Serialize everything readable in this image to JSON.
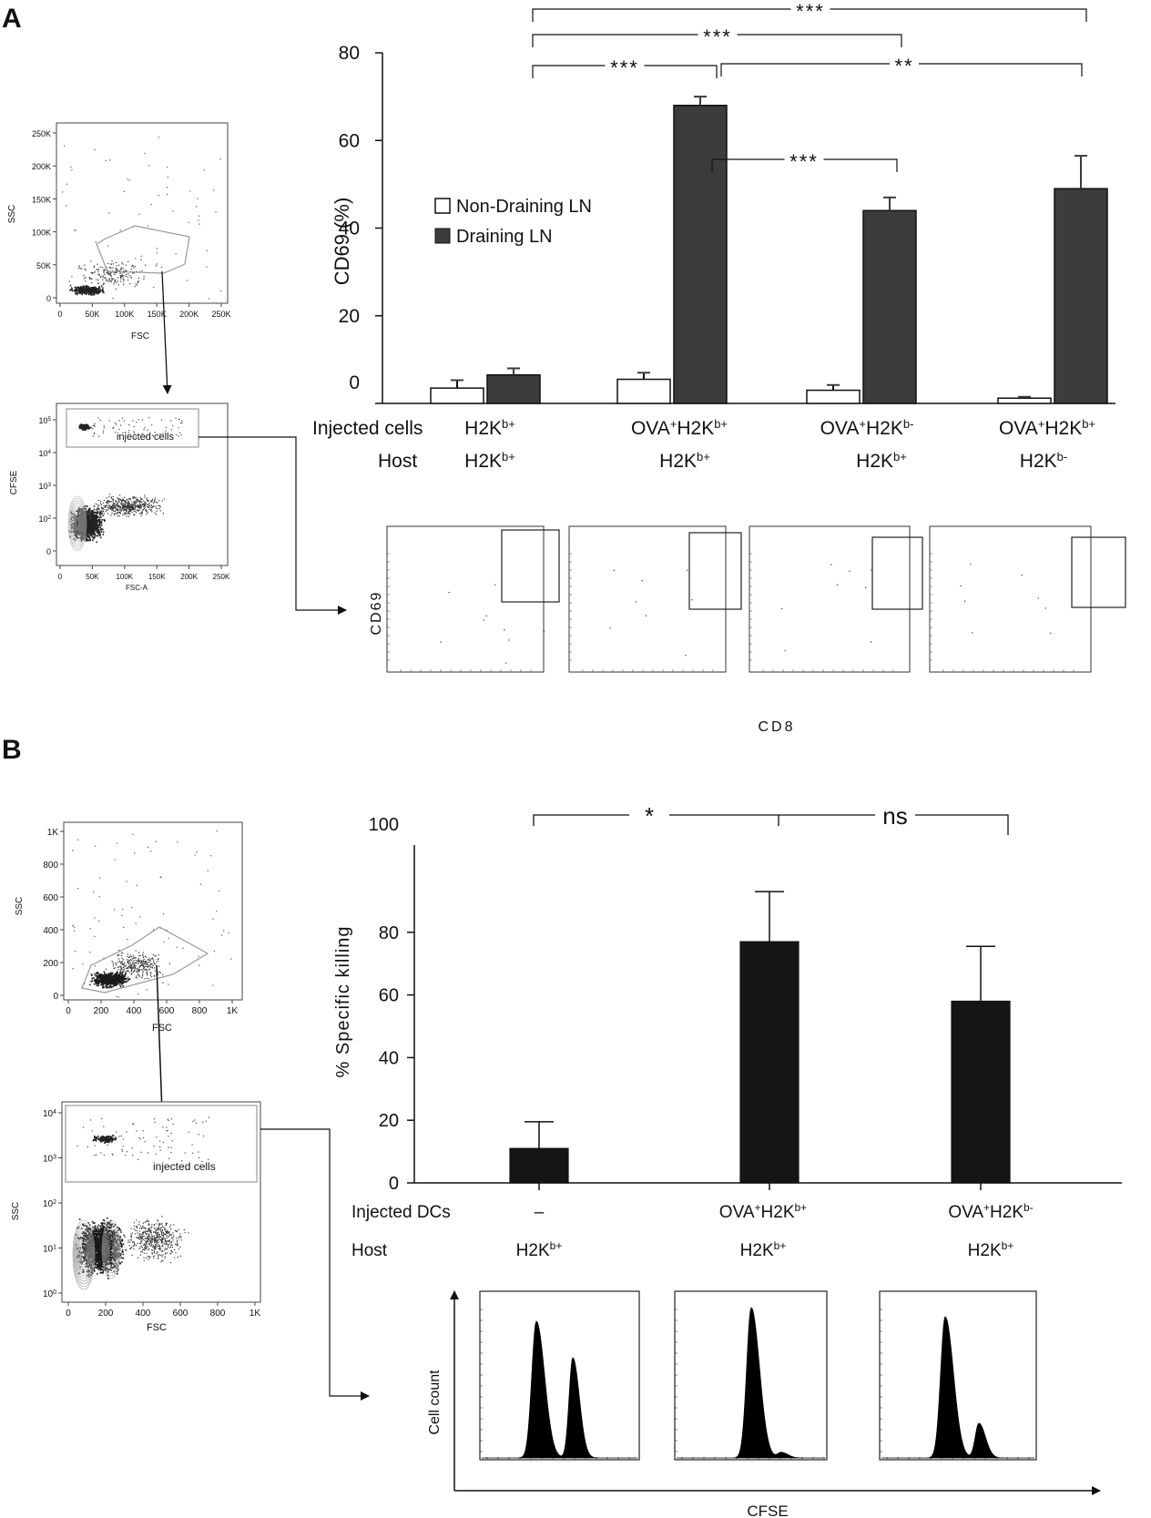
{
  "panel_a": {
    "label": "A",
    "gating1": {
      "y_label": "SSC",
      "x_label": "FSC",
      "y_ticks": [
        "250K",
        "200K",
        "150K",
        "100K",
        "50K",
        "0"
      ],
      "x_ticks": [
        "0",
        "50K",
        "100K",
        "150K",
        "200K",
        "250K"
      ]
    },
    "gating2": {
      "y_label": "CFSE",
      "x_label": "FSC-A",
      "y_ticks": [
        "10^5",
        "10^4",
        "10^3",
        "10^2",
        "0"
      ],
      "x_ticks": [
        "0",
        "50K",
        "100K",
        "150K",
        "200K",
        "250K"
      ],
      "gate_label": "injected cells"
    },
    "dot_axis": {
      "y_label": "CD69",
      "x_label": "CD8"
    },
    "row_labels": {
      "injected": "Injected cells",
      "host": "Host"
    },
    "groups": [
      {
        "injected": "H2K^b+",
        "host": "H2K^b+"
      },
      {
        "injected": "OVA^+H2K^b+",
        "host": "H2K^b+"
      },
      {
        "injected": "OVA^+H2K^b-",
        "host": "H2K^b+"
      },
      {
        "injected": "OVA^+H2K^b+",
        "host": "H2K^b-"
      }
    ],
    "significance": [
      {
        "from": 0,
        "to": 1,
        "label": "***"
      },
      {
        "from": 0,
        "to": 2,
        "label": "***"
      },
      {
        "from": 0,
        "to": 3,
        "label": "***"
      },
      {
        "from": 1,
        "to": 3,
        "label": "**"
      },
      {
        "from": 1,
        "to": 2,
        "label": "***"
      }
    ]
  },
  "panel_b": {
    "label": "B",
    "gating1": {
      "y_label": "SSC",
      "x_label": "FSC",
      "y_ticks": [
        "1K",
        "800",
        "600",
        "400",
        "200",
        "0"
      ],
      "x_ticks": [
        "0",
        "200",
        "400",
        "600",
        "800",
        "1K"
      ]
    },
    "gating2": {
      "y_label": "SSC",
      "x_label": "FSC",
      "y_ticks": [
        "10^4",
        "10^3",
        "10^2",
        "10^1",
        "10^0"
      ],
      "x_ticks": [
        "0",
        "200",
        "400",
        "600",
        "800",
        "1K"
      ],
      "gate_label": "injected cells"
    },
    "hist_axis": {
      "y_label": "Cell count",
      "x_label": "CFSE"
    },
    "row_labels": {
      "injected": "Injected DCs",
      "host": "Host"
    },
    "groups": [
      {
        "injected": "–",
        "host": "H2K^b+"
      },
      {
        "injected": "OVA^+H2K^b+",
        "host": "H2K^b+"
      },
      {
        "injected": "OVA^+H2K^b-",
        "host": "H2K^b+"
      }
    ],
    "significance": [
      {
        "from": 0,
        "to": 1,
        "label": "*"
      },
      {
        "from": 1,
        "to": 2,
        "label": "ns"
      }
    ]
  },
  "chart_data": [
    {
      "type": "bar",
      "title": "",
      "xlabel": "",
      "ylabel": "CD69  (%)",
      "ylim": [
        0,
        80
      ],
      "yticks": [
        "0",
        "20",
        "40",
        "60",
        "80"
      ],
      "categories": [
        "H2K^b+ / H2K^b+",
        "OVA^+H2K^b+ / H2K^b+",
        "OVA^+H2K^b- / H2K^b+",
        "OVA^+H2K^b+ / H2K^b-"
      ],
      "legend": "upper-left",
      "series": [
        {
          "name": "Non-Draining LN",
          "color": "#ffffff",
          "values": [
            3.5,
            5.5,
            3,
            1.2
          ],
          "errors": [
            1.8,
            1.5,
            1.2,
            0.3
          ]
        },
        {
          "name": "Draining LN",
          "color": "#3c3c3c",
          "values": [
            6.5,
            68,
            44,
            49
          ],
          "errors": [
            1.5,
            2,
            3,
            7.5
          ]
        }
      ]
    },
    {
      "type": "bar",
      "title": "",
      "xlabel": "",
      "ylabel": "% Specific killing",
      "ylim": [
        0,
        100
      ],
      "yticks": [
        "0",
        "20",
        "40",
        "60",
        "80",
        "100"
      ],
      "categories": [
        "– / H2K^b+",
        "OVA^+H2K^b+ / H2K^b+",
        "OVA^+H2K^b- / H2K^b+"
      ],
      "series": [
        {
          "name": "",
          "color": "#151515",
          "values": [
            11,
            77,
            58
          ],
          "errors": [
            8.5,
            16,
            17.5
          ]
        }
      ]
    }
  ]
}
